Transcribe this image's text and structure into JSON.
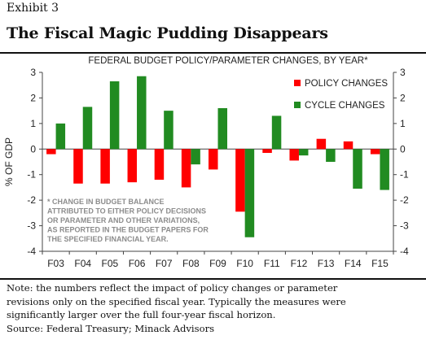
{
  "exhibit_label": "Exhibit 3",
  "headline": "The Fiscal Magic Pudding Disappears",
  "chart_data": {
    "type": "bar",
    "title": "FEDERAL BUDGET POLICY/PARAMETER CHANGES, BY YEAR*",
    "ylabel": "% OF GDP",
    "xlabel": "",
    "ylim": [
      -4,
      3
    ],
    "yticks": [
      -4,
      -3,
      -2,
      -1,
      0,
      1,
      2,
      3
    ],
    "secondary_axis": true,
    "grid": false,
    "legend_position": "top-right",
    "categories": [
      "F03",
      "F04",
      "F05",
      "F06",
      "F07",
      "F08",
      "F09",
      "F10",
      "F11",
      "F12",
      "F13",
      "F14",
      "F15"
    ],
    "series": [
      {
        "name": "POLICY CHANGES",
        "color": "#ff0000",
        "values": [
          -0.2,
          -1.35,
          -1.35,
          -1.3,
          -1.2,
          -1.5,
          -0.8,
          -2.45,
          -0.15,
          -0.45,
          0.4,
          0.3,
          -0.2
        ]
      },
      {
        "name": "CYCLE CHANGES",
        "color": "#218b21",
        "values": [
          1.0,
          1.65,
          2.65,
          2.85,
          1.5,
          -0.6,
          1.6,
          -3.45,
          1.3,
          -0.25,
          -0.5,
          -1.55,
          -1.6
        ]
      }
    ],
    "annotation": [
      "* CHANGE IN BUDGET BALANCE",
      "ATTRIBUTED TO EITHER POLICY DECISIONS",
      "OR PARAMETER AND OTHER VARIATIONS,",
      "AS REPORTED IN THE BUDGET PAPERS FOR",
      "THE SPECIFIED FINANCIAL YEAR."
    ]
  },
  "note_lines": [
    "Note: the numbers reflect the impact of policy changes or parameter",
    "revisions only on the specified fiscal year.  Typically the measures were",
    "significantly larger over the full four-year fiscal horizon.",
    "Source: Federal Treasury; Minack Advisors"
  ]
}
